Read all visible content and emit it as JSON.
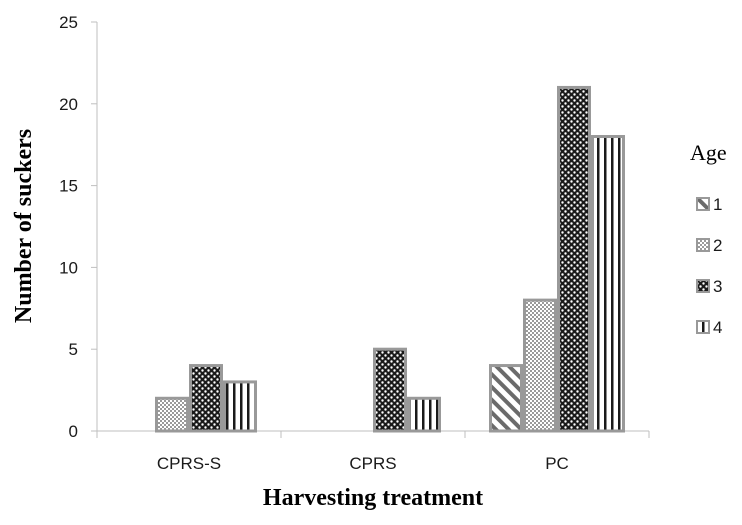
{
  "chart_data": {
    "type": "bar",
    "categories": [
      "CPRS-S",
      "CPRS",
      "PC"
    ],
    "series": [
      {
        "name": "1",
        "values": [
          0,
          0,
          4
        ],
        "pattern": "diagonal"
      },
      {
        "name": "2",
        "values": [
          2,
          0,
          8
        ],
        "pattern": "fine-check"
      },
      {
        "name": "3",
        "values": [
          4,
          5,
          21
        ],
        "pattern": "dark-check"
      },
      {
        "name": "4",
        "values": [
          3,
          2,
          18
        ],
        "pattern": "vertical"
      }
    ],
    "xlabel": "Harvesting treatment",
    "ylabel": "Number of suckers",
    "ylim": [
      0,
      25
    ],
    "yticks": [
      0,
      5,
      10,
      15,
      20,
      25
    ],
    "legend_title": "Age",
    "legend_position": "right",
    "grid": false,
    "colors": {
      "bar_border": "#999999",
      "axis": "#bfbfbf",
      "text": "#1a1a1a"
    }
  }
}
